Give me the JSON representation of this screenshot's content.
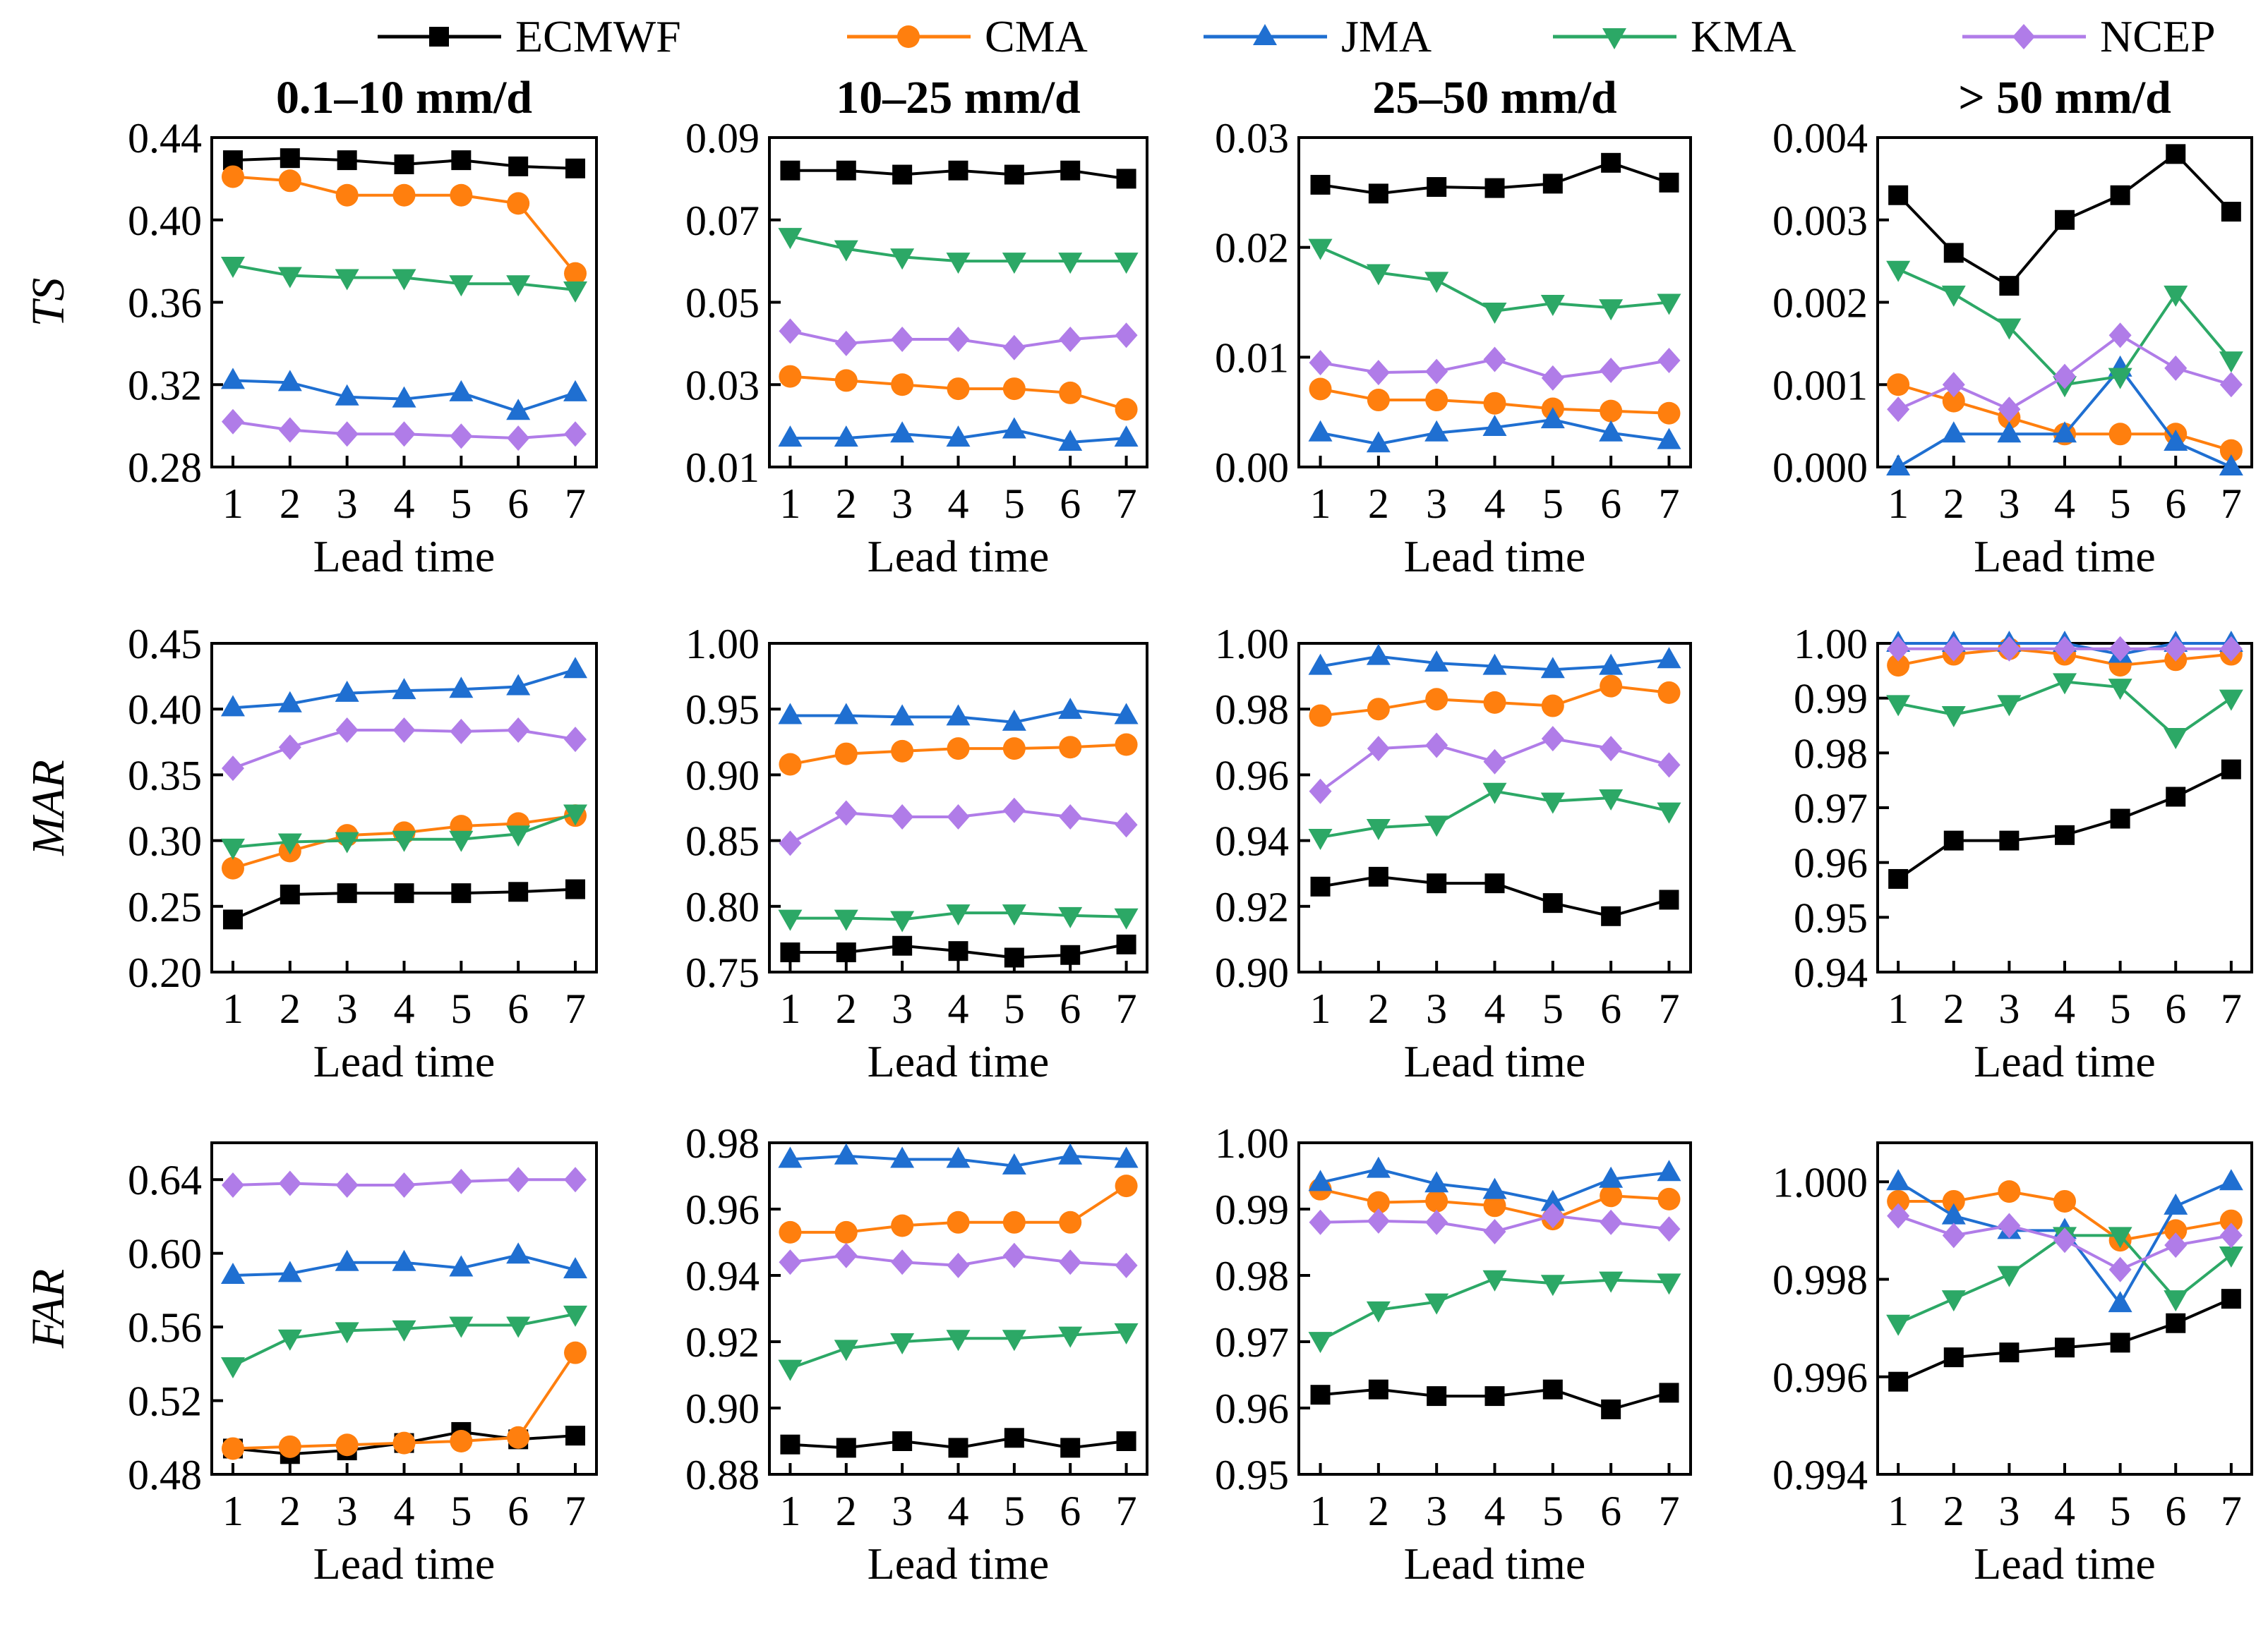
{
  "chart_data": {
    "type": "line",
    "legend": {
      "placement": "top-center",
      "entries": [
        {
          "name": "ECMWF",
          "color": "#000000",
          "marker": "square"
        },
        {
          "name": "CMA",
          "color": "#FF7F0E",
          "marker": "circle"
        },
        {
          "name": "JMA",
          "color": "#1F6FD1",
          "marker": "triangle-up"
        },
        {
          "name": "KMA",
          "color": "#2CA866",
          "marker": "triangle-down"
        },
        {
          "name": "NCEP",
          "color": "#B07CE8",
          "marker": "diamond"
        }
      ]
    },
    "x": [
      1,
      2,
      3,
      4,
      5,
      6,
      7
    ],
    "xlabel": "Lead time",
    "column_titles": [
      "0.1–10 mm/d",
      "10–25 mm/d",
      "25–50 mm/d",
      "> 50 mm/d"
    ],
    "row_labels": [
      "TS",
      "MAR",
      "FAR"
    ],
    "panels": [
      {
        "row": 0,
        "col": 0,
        "ylim": [
          0.28,
          0.44
        ],
        "yticks": [
          "0.28",
          "0.32",
          "0.36",
          "0.40",
          "0.44"
        ],
        "series": {
          "ECMWF": [
            0.429,
            0.43,
            0.429,
            0.427,
            0.429,
            0.426,
            0.425
          ],
          "CMA": [
            0.421,
            0.419,
            0.412,
            0.412,
            0.412,
            0.408,
            0.374
          ],
          "JMA": [
            0.322,
            0.321,
            0.314,
            0.313,
            0.316,
            0.307,
            0.316
          ],
          "KMA": [
            0.378,
            0.373,
            0.372,
            0.372,
            0.369,
            0.369,
            0.366
          ],
          "NCEP": [
            0.302,
            0.298,
            0.296,
            0.296,
            0.295,
            0.294,
            0.296
          ]
        }
      },
      {
        "row": 0,
        "col": 1,
        "ylim": [
          0.01,
          0.09
        ],
        "yticks": [
          "0.01",
          "0.03",
          "0.05",
          "0.07",
          "0.09"
        ],
        "series": {
          "ECMWF": [
            0.082,
            0.082,
            0.081,
            0.082,
            0.081,
            0.082,
            0.08
          ],
          "CMA": [
            0.032,
            0.031,
            0.03,
            0.029,
            0.029,
            0.028,
            0.024
          ],
          "JMA": [
            0.017,
            0.017,
            0.018,
            0.017,
            0.019,
            0.016,
            0.017
          ],
          "KMA": [
            0.066,
            0.063,
            0.061,
            0.06,
            0.06,
            0.06,
            0.06
          ],
          "NCEP": [
            0.043,
            0.04,
            0.041,
            0.041,
            0.039,
            0.041,
            0.042
          ]
        }
      },
      {
        "row": 0,
        "col": 2,
        "ylim": [
          0.0,
          0.03
        ],
        "yticks": [
          "0.00",
          "0.01",
          "0.02",
          "0.03"
        ],
        "series": {
          "ECMWF": [
            0.0257,
            0.0249,
            0.0255,
            0.0254,
            0.0258,
            0.0277,
            0.0259
          ],
          "CMA": [
            0.0071,
            0.0061,
            0.0061,
            0.0058,
            0.0053,
            0.0051,
            0.0049
          ],
          "JMA": [
            0.0031,
            0.0021,
            0.0031,
            0.0036,
            0.0043,
            0.0031,
            0.0024
          ],
          "KMA": [
            0.02,
            0.0177,
            0.017,
            0.0142,
            0.0149,
            0.0145,
            0.015
          ],
          "NCEP": [
            0.0095,
            0.0086,
            0.0087,
            0.0098,
            0.0081,
            0.0088,
            0.0097
          ]
        }
      },
      {
        "row": 0,
        "col": 3,
        "ylim": [
          0.0,
          0.004
        ],
        "yticks": [
          "0.000",
          "0.001",
          "0.002",
          "0.003",
          "0.004"
        ],
        "series": {
          "ECMWF": [
            0.0033,
            0.0026,
            0.0022,
            0.003,
            0.0033,
            0.0038,
            0.0031
          ],
          "CMA": [
            0.001,
            0.0008,
            0.0006,
            0.0004,
            0.0004,
            0.0004,
            0.0002
          ],
          "JMA": [
            0.0,
            0.0004,
            0.0004,
            0.0004,
            0.0012,
            0.0003,
            0.0
          ],
          "KMA": [
            0.0024,
            0.0021,
            0.0017,
            0.001,
            0.0011,
            0.0021,
            0.0013
          ],
          "NCEP": [
            0.0007,
            0.001,
            0.0007,
            0.0011,
            0.0016,
            0.0012,
            0.001
          ]
        }
      },
      {
        "row": 1,
        "col": 0,
        "ylim": [
          0.2,
          0.45
        ],
        "yticks": [
          "0.20",
          "0.25",
          "0.30",
          "0.35",
          "0.40",
          "0.45"
        ],
        "series": {
          "ECMWF": [
            0.24,
            0.259,
            0.26,
            0.26,
            0.26,
            0.261,
            0.263
          ],
          "CMA": [
            0.279,
            0.292,
            0.304,
            0.306,
            0.311,
            0.313,
            0.319
          ],
          "JMA": [
            0.401,
            0.404,
            0.412,
            0.414,
            0.415,
            0.417,
            0.43
          ],
          "KMA": [
            0.295,
            0.299,
            0.3,
            0.301,
            0.301,
            0.305,
            0.321
          ],
          "NCEP": [
            0.355,
            0.371,
            0.384,
            0.384,
            0.383,
            0.384,
            0.377
          ]
        }
      },
      {
        "row": 1,
        "col": 1,
        "ylim": [
          0.75,
          1.0
        ],
        "yticks": [
          "0.75",
          "0.80",
          "0.85",
          "0.90",
          "0.95",
          "1.00"
        ],
        "series": {
          "ECMWF": [
            0.765,
            0.765,
            0.77,
            0.766,
            0.761,
            0.763,
            0.771
          ],
          "CMA": [
            0.908,
            0.916,
            0.918,
            0.92,
            0.92,
            0.921,
            0.923
          ],
          "JMA": [
            0.945,
            0.945,
            0.944,
            0.944,
            0.94,
            0.949,
            0.945
          ],
          "KMA": [
            0.791,
            0.791,
            0.79,
            0.795,
            0.795,
            0.793,
            0.792
          ],
          "NCEP": [
            0.848,
            0.871,
            0.868,
            0.868,
            0.873,
            0.868,
            0.862
          ]
        }
      },
      {
        "row": 1,
        "col": 2,
        "ylim": [
          0.9,
          1.0
        ],
        "yticks": [
          "0.90",
          "0.92",
          "0.94",
          "0.96",
          "0.98",
          "1.00"
        ],
        "series": {
          "ECMWF": [
            0.926,
            0.929,
            0.927,
            0.927,
            0.921,
            0.917,
            0.922
          ],
          "CMA": [
            0.978,
            0.98,
            0.983,
            0.982,
            0.981,
            0.987,
            0.985
          ],
          "JMA": [
            0.993,
            0.996,
            0.994,
            0.993,
            0.992,
            0.993,
            0.995
          ],
          "KMA": [
            0.941,
            0.944,
            0.945,
            0.955,
            0.952,
            0.953,
            0.949
          ],
          "NCEP": [
            0.955,
            0.968,
            0.969,
            0.964,
            0.971,
            0.968,
            0.963
          ]
        }
      },
      {
        "row": 1,
        "col": 3,
        "ylim": [
          0.94,
          1.0
        ],
        "yticks": [
          "0.94",
          "0.95",
          "0.96",
          "0.97",
          "0.98",
          "0.99",
          "1.00"
        ],
        "series": {
          "ECMWF": [
            0.957,
            0.964,
            0.964,
            0.965,
            0.968,
            0.972,
            0.977
          ],
          "CMA": [
            0.996,
            0.998,
            0.999,
            0.998,
            0.996,
            0.997,
            0.998
          ],
          "JMA": [
            1.0,
            1.0,
            1.0,
            1.0,
            0.998,
            1.0,
            1.0
          ],
          "KMA": [
            0.989,
            0.987,
            0.989,
            0.993,
            0.992,
            0.983,
            0.99
          ],
          "NCEP": [
            0.999,
            0.999,
            0.999,
            0.999,
            0.999,
            0.999,
            0.999
          ]
        }
      },
      {
        "row": 2,
        "col": 0,
        "ylim": [
          0.48,
          0.66
        ],
        "yticks": [
          "0.48",
          "0.52",
          "0.56",
          "0.60",
          "0.64"
        ],
        "series": {
          "ECMWF": [
            0.494,
            0.491,
            0.493,
            0.497,
            0.503,
            0.499,
            0.501
          ],
          "CMA": [
            0.494,
            0.495,
            0.496,
            0.497,
            0.498,
            0.5,
            0.546
          ],
          "JMA": [
            0.588,
            0.589,
            0.595,
            0.595,
            0.592,
            0.599,
            0.591
          ],
          "KMA": [
            0.539,
            0.554,
            0.558,
            0.559,
            0.561,
            0.561,
            0.567
          ],
          "NCEP": [
            0.637,
            0.638,
            0.637,
            0.637,
            0.639,
            0.64,
            0.64
          ]
        }
      },
      {
        "row": 2,
        "col": 1,
        "ylim": [
          0.88,
          0.98
        ],
        "yticks": [
          "0.88",
          "0.90",
          "0.92",
          "0.94",
          "0.96",
          "0.98"
        ],
        "series": {
          "ECMWF": [
            0.889,
            0.888,
            0.89,
            0.888,
            0.891,
            0.888,
            0.89
          ],
          "CMA": [
            0.953,
            0.953,
            0.955,
            0.956,
            0.956,
            0.956,
            0.967
          ],
          "JMA": [
            0.975,
            0.976,
            0.975,
            0.975,
            0.973,
            0.976,
            0.975
          ],
          "KMA": [
            0.912,
            0.918,
            0.92,
            0.921,
            0.921,
            0.922,
            0.923
          ],
          "NCEP": [
            0.944,
            0.946,
            0.944,
            0.943,
            0.946,
            0.944,
            0.943
          ]
        }
      },
      {
        "row": 2,
        "col": 2,
        "ylim": [
          0.95,
          1.0
        ],
        "yticks": [
          "0.95",
          "0.96",
          "0.97",
          "0.98",
          "0.99",
          "1.00"
        ],
        "series": {
          "ECMWF": [
            0.962,
            0.9628,
            0.9618,
            0.9618,
            0.9628,
            0.9598,
            0.9623
          ],
          "CMA": [
            0.993,
            0.991,
            0.9912,
            0.9905,
            0.9885,
            0.992,
            0.9915
          ],
          "JMA": [
            0.994,
            0.996,
            0.9938,
            0.9928,
            0.991,
            0.9945,
            0.9955
          ],
          "KMA": [
            0.9702,
            0.9748,
            0.976,
            0.9795,
            0.9788,
            0.9793,
            0.979
          ],
          "NCEP": [
            0.988,
            0.9882,
            0.988,
            0.9866,
            0.989,
            0.988,
            0.987
          ]
        }
      },
      {
        "row": 2,
        "col": 3,
        "ylim": [
          0.994,
          1.0008
        ],
        "yticks": [
          "0.994",
          "0.996",
          "0.998",
          "1.000"
        ],
        "series": {
          "ECMWF": [
            0.9959,
            0.9964,
            0.9965,
            0.9966,
            0.9967,
            0.9971,
            0.9976
          ],
          "CMA": [
            0.9996,
            0.9996,
            0.9998,
            0.9996,
            0.9988,
            0.999,
            0.9992
          ],
          "JMA": [
            1.0,
            0.9993,
            0.999,
            0.999,
            0.9975,
            0.9995,
            1.0
          ],
          "KMA": [
            0.9971,
            0.9976,
            0.9981,
            0.9989,
            0.9989,
            0.9976,
            0.9985
          ],
          "NCEP": [
            0.9993,
            0.9989,
            0.9991,
            0.9988,
            0.9982,
            0.9987,
            0.9989
          ]
        }
      }
    ]
  }
}
